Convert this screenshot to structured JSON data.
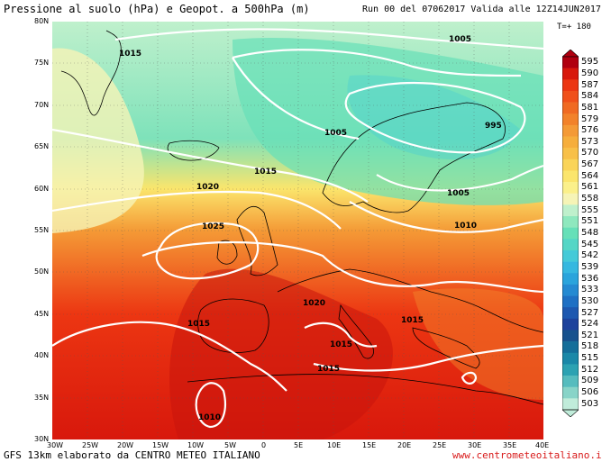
{
  "header": {
    "title": "Pressione al suolo (hPa) e Geopot. a 500hPa (m)",
    "run_info": "Run 00 del 07062017  Valida alle 12Z14JUN2017",
    "timestep": "T=+ 180"
  },
  "footer": {
    "left": "GFS 13km elaborato da CENTRO METEO ITALIANO",
    "right": "www.centrometeoitaliano.it"
  },
  "map": {
    "lat_labels": [
      "80N",
      "75N",
      "70N",
      "65N",
      "60N",
      "55N",
      "50N",
      "45N",
      "40N",
      "35N",
      "30N"
    ],
    "lon_labels": [
      "30W",
      "25W",
      "20W",
      "15W",
      "10W",
      "5W",
      "0",
      "5E",
      "10E",
      "15E",
      "20E",
      "25E",
      "30E",
      "35E",
      "40E"
    ],
    "isobar_labels": [
      {
        "text": "1005"
      },
      {
        "text": "1015"
      },
      {
        "text": "995"
      },
      {
        "text": "1005"
      },
      {
        "text": "1015"
      },
      {
        "text": "1020"
      },
      {
        "text": "1005"
      },
      {
        "text": "1010"
      },
      {
        "text": "1025"
      },
      {
        "text": "1020"
      },
      {
        "text": "1015"
      },
      {
        "text": "1015"
      },
      {
        "text": "1015"
      },
      {
        "text": "1015"
      },
      {
        "text": "1010"
      }
    ]
  },
  "scale": {
    "values": [
      "595",
      "590",
      "587",
      "584",
      "581",
      "579",
      "576",
      "573",
      "570",
      "567",
      "564",
      "561",
      "558",
      "555",
      "551",
      "548",
      "545",
      "542",
      "539",
      "536",
      "533",
      "530",
      "527",
      "524",
      "521",
      "518",
      "515",
      "512",
      "509",
      "506",
      "503"
    ],
    "colors": [
      "#b00010",
      "#d8180c",
      "#ec3612",
      "#f0501a",
      "#f06a22",
      "#f2822a",
      "#f49a36",
      "#f6ae3c",
      "#f8c048",
      "#fad458",
      "#fbe56c",
      "#fbf08a",
      "#f6f4b6",
      "#bff0cc",
      "#8ee8be",
      "#66e0b8",
      "#54d6c6",
      "#44cad8",
      "#36b8e0",
      "#2aa4dc",
      "#248ad2",
      "#1e70c4",
      "#1d58b0",
      "#1d429c",
      "#17528e",
      "#146e9a",
      "#1a88a8",
      "#2ca2b2",
      "#56bcbe",
      "#88d4c8",
      "#c0ecda"
    ]
  }
}
